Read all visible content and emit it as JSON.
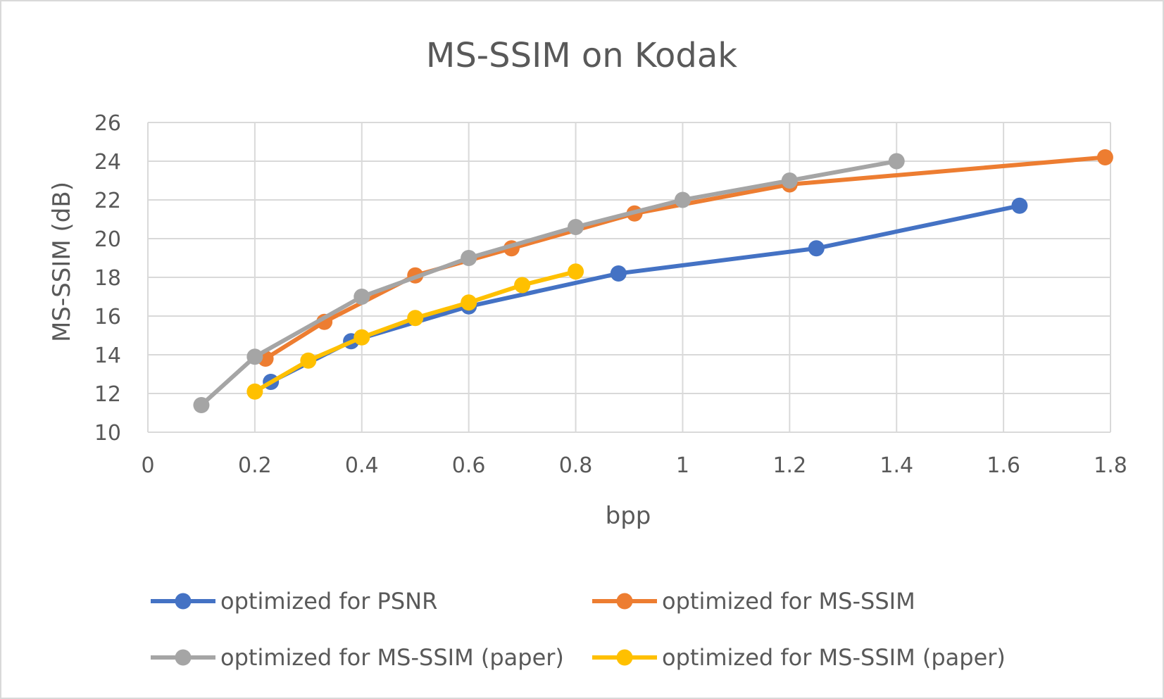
{
  "chart_data": {
    "type": "line",
    "title": "MS-SSIM on Kodak",
    "xlabel": "bpp",
    "ylabel": "MS-SSIM (dB)",
    "xlim": [
      0,
      1.8
    ],
    "ylim": [
      10,
      26
    ],
    "xticks": [
      0,
      0.2,
      0.4,
      0.6,
      0.8,
      1,
      1.2,
      1.4,
      1.6,
      1.8
    ],
    "xtick_labels": [
      "0",
      "0.2",
      "0.4",
      "0.6",
      "0.8",
      "1",
      "1.2",
      "1.4",
      "1.6",
      "1.8"
    ],
    "yticks": [
      10,
      12,
      14,
      16,
      18,
      20,
      22,
      24,
      26
    ],
    "ytick_labels": [
      "10",
      "12",
      "14",
      "16",
      "18",
      "20",
      "22",
      "24",
      "26"
    ],
    "grid": true,
    "legend_position": "bottom",
    "series": [
      {
        "name": "optimized for PSNR",
        "color": "#4472c4",
        "points": [
          [
            0.23,
            12.6
          ],
          [
            0.38,
            14.7
          ],
          [
            0.6,
            16.5
          ],
          [
            0.88,
            18.2
          ],
          [
            1.25,
            19.5
          ],
          [
            1.63,
            21.7
          ]
        ]
      },
      {
        "name": "optimized for MS-SSIM",
        "color": "#ed7d31",
        "points": [
          [
            0.22,
            13.8
          ],
          [
            0.33,
            15.7
          ],
          [
            0.5,
            18.1
          ],
          [
            0.68,
            19.5
          ],
          [
            0.91,
            21.3
          ],
          [
            1.2,
            22.8
          ],
          [
            1.79,
            24.2
          ]
        ]
      },
      {
        "name": "optimized for MS-SSIM (paper)",
        "color": "#a5a5a5",
        "points": [
          [
            0.1,
            11.4
          ],
          [
            0.2,
            13.9
          ],
          [
            0.4,
            17.0
          ],
          [
            0.6,
            19.0
          ],
          [
            0.8,
            20.6
          ],
          [
            1.0,
            22.0
          ],
          [
            1.2,
            23.0
          ],
          [
            1.4,
            24.0
          ]
        ]
      },
      {
        "name": "optimized for MS-SSIM (paper)",
        "color": "#ffc000",
        "points": [
          [
            0.2,
            12.1
          ],
          [
            0.3,
            13.7
          ],
          [
            0.4,
            14.9
          ],
          [
            0.5,
            15.9
          ],
          [
            0.6,
            16.7
          ],
          [
            0.7,
            17.6
          ],
          [
            0.8,
            18.3
          ]
        ]
      }
    ]
  }
}
